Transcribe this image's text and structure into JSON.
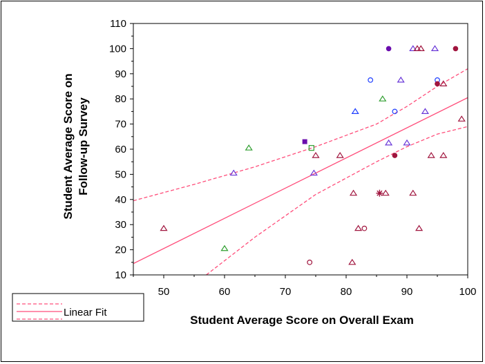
{
  "chart_data": {
    "type": "scatter",
    "xlabel": "Student Average Score on Overall Exam",
    "ylabel": "Student Average Score on Follow-up Survey",
    "ylabel_lines": [
      "Student Average Score on",
      "Follow-up Survey"
    ],
    "xlim": [
      45,
      100
    ],
    "ylim": [
      10,
      110
    ],
    "xticks": [
      "50",
      "60",
      "70",
      "80",
      "90",
      "100"
    ],
    "yticks": [
      "10",
      "20",
      "30",
      "40",
      "50",
      "60",
      "70",
      "80",
      "90",
      "100",
      "110"
    ],
    "grid": false,
    "legend": {
      "position": "bottom-left",
      "label": "Linear Fit"
    },
    "colors": {
      "fit": "#ff4d7a",
      "maroon": "#a0153e",
      "purple": "#6a0dad",
      "blue": "#1f3fff",
      "violet": "#6a38d8",
      "green": "#2e9e2e"
    },
    "fit_line": {
      "x": [
        45,
        100
      ],
      "y": [
        14.5,
        80.5
      ]
    },
    "confidence_upper": {
      "x": [
        45,
        55,
        65,
        75,
        85,
        90,
        95,
        100
      ],
      "y": [
        39.5,
        46,
        53,
        61,
        70,
        77,
        85,
        92
      ]
    },
    "confidence_lower": {
      "x": [
        57,
        65,
        75,
        85,
        90,
        95,
        100
      ],
      "y": [
        10,
        25,
        42,
        55,
        61,
        66,
        69
      ]
    },
    "points": [
      {
        "x": 50,
        "y": 28.5,
        "marker": "triangle",
        "color": "maroon"
      },
      {
        "x": 60,
        "y": 20.5,
        "marker": "triangle",
        "color": "green"
      },
      {
        "x": 61.5,
        "y": 50.5,
        "marker": "triangle",
        "color": "violet"
      },
      {
        "x": 64,
        "y": 60.5,
        "marker": "triangle",
        "color": "green"
      },
      {
        "x": 73.2,
        "y": 63,
        "marker": "square",
        "color": "purple"
      },
      {
        "x": 74.3,
        "y": 60.5,
        "marker": "square-open",
        "color": "green"
      },
      {
        "x": 74.7,
        "y": 50.5,
        "marker": "triangle",
        "color": "violet"
      },
      {
        "x": 75,
        "y": 57.5,
        "marker": "triangle",
        "color": "maroon"
      },
      {
        "x": 74,
        "y": 15,
        "marker": "circle-open",
        "color": "maroon"
      },
      {
        "x": 79,
        "y": 57.5,
        "marker": "triangle",
        "color": "maroon"
      },
      {
        "x": 81,
        "y": 15,
        "marker": "triangle",
        "color": "maroon"
      },
      {
        "x": 81.2,
        "y": 42.5,
        "marker": "triangle",
        "color": "maroon"
      },
      {
        "x": 81.5,
        "y": 75,
        "marker": "triangle",
        "color": "blue"
      },
      {
        "x": 82,
        "y": 28.5,
        "marker": "triangle",
        "color": "maroon"
      },
      {
        "x": 83,
        "y": 28.5,
        "marker": "circle-open",
        "color": "maroon"
      },
      {
        "x": 84,
        "y": 87.5,
        "marker": "circle-open",
        "color": "blue"
      },
      {
        "x": 85.5,
        "y": 42.5,
        "marker": "star",
        "color": "maroon"
      },
      {
        "x": 86.5,
        "y": 42.5,
        "marker": "triangle",
        "color": "maroon"
      },
      {
        "x": 86,
        "y": 80,
        "marker": "triangle",
        "color": "green"
      },
      {
        "x": 87,
        "y": 100,
        "marker": "circle",
        "color": "purple"
      },
      {
        "x": 87,
        "y": 62.5,
        "marker": "triangle",
        "color": "violet"
      },
      {
        "x": 88,
        "y": 57.5,
        "marker": "circle",
        "color": "maroon"
      },
      {
        "x": 88,
        "y": 75,
        "marker": "circle-open",
        "color": "blue"
      },
      {
        "x": 89,
        "y": 87.5,
        "marker": "triangle",
        "color": "violet"
      },
      {
        "x": 90,
        "y": 62.5,
        "marker": "triangle",
        "color": "violet"
      },
      {
        "x": 91,
        "y": 100,
        "marker": "triangle",
        "color": "violet"
      },
      {
        "x": 91,
        "y": 42.5,
        "marker": "triangle",
        "color": "maroon"
      },
      {
        "x": 91.7,
        "y": 100,
        "marker": "triangle",
        "color": "maroon"
      },
      {
        "x": 92.3,
        "y": 100,
        "marker": "triangle",
        "color": "maroon"
      },
      {
        "x": 92,
        "y": 28.5,
        "marker": "triangle",
        "color": "maroon"
      },
      {
        "x": 93,
        "y": 75,
        "marker": "triangle",
        "color": "violet"
      },
      {
        "x": 94,
        "y": 57.5,
        "marker": "triangle",
        "color": "maroon"
      },
      {
        "x": 94.6,
        "y": 100,
        "marker": "triangle",
        "color": "violet"
      },
      {
        "x": 95,
        "y": 87.5,
        "marker": "circle-open",
        "color": "blue"
      },
      {
        "x": 95,
        "y": 86,
        "marker": "circle",
        "color": "maroon"
      },
      {
        "x": 96,
        "y": 86,
        "marker": "triangle",
        "color": "maroon"
      },
      {
        "x": 96,
        "y": 57.5,
        "marker": "triangle",
        "color": "maroon"
      },
      {
        "x": 98,
        "y": 100,
        "marker": "circle",
        "color": "maroon"
      },
      {
        "x": 99,
        "y": 72,
        "marker": "triangle",
        "color": "maroon"
      }
    ]
  }
}
